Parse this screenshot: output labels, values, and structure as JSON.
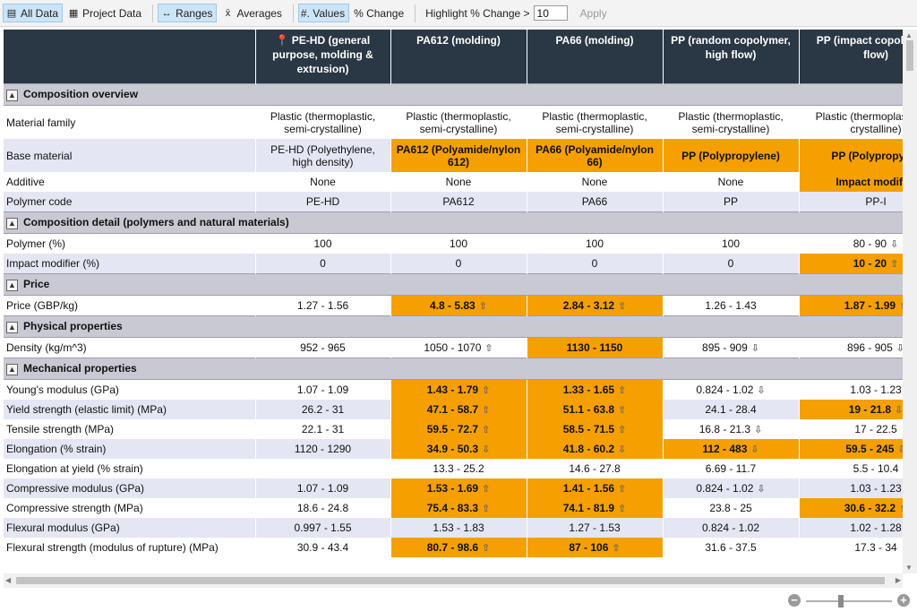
{
  "toolbar": {
    "all_data": "All Data",
    "project_data": "Project Data",
    "ranges": "Ranges",
    "averages": "Averages",
    "values": "#. Values",
    "change": "% Change",
    "highlight_label": "Highlight % Change >",
    "highlight_value": "10",
    "apply": "Apply",
    "icons": [
      "all-data-icon",
      "project-data-icon",
      "ranges-icon",
      "averages-icon"
    ]
  },
  "columns": [
    "PE-HD (general purpose, molding & extrusion)",
    "PA612 (molding)",
    "PA66 (molding)",
    "PP (random copolymer, high flow)",
    "PP (impact copoly high flow)"
  ],
  "colors": {
    "header_bg": "#2a3744",
    "highlight": "#f5a000",
    "section_bg": "#c9c9d3",
    "alt_row": "#e4e6f4"
  },
  "sections": {
    "composition_overview": "Composition overview",
    "composition_detail": "Composition detail (polymers and natural materials)",
    "price": "Price",
    "physical": "Physical properties",
    "mechanical": "Mechanical properties"
  },
  "rows": {
    "material_family": {
      "label": "Material family",
      "v": [
        "Plastic (thermoplastic, semi-crystalline)",
        "Plastic (thermoplastic, semi-crystalline)",
        "Plastic (thermoplastic, semi-crystalline)",
        "Plastic (thermoplastic, semi-crystalline)",
        "Plastic (thermoplas semi-crystalline)"
      ]
    },
    "base_material": {
      "label": "Base material",
      "v": [
        "PE-HD (Polyethylene, high density)",
        "PA612 (Polyamide/nylon 612)",
        "PA66 (Polyamide/nylon 66)",
        "PP (Polypropylene)",
        "PP (Polypropylen"
      ]
    },
    "additive": {
      "label": "Additive",
      "v": [
        "None",
        "None",
        "None",
        "None",
        "Impact modifier"
      ]
    },
    "polymer_code": {
      "label": "Polymer code",
      "v": [
        "PE-HD",
        "PA612",
        "PA66",
        "PP",
        "PP-I"
      ]
    },
    "polymer_pct": {
      "label": "Polymer (%)",
      "v": [
        "100",
        "100",
        "100",
        "100",
        "80 - 90"
      ]
    },
    "impact_mod": {
      "label": "Impact modifier (%)",
      "v": [
        "0",
        "0",
        "0",
        "0",
        "10 - 20"
      ]
    },
    "price_gbp": {
      "label": "Price (GBP/kg)",
      "v": [
        "1.27 - 1.56",
        "4.8 - 5.83",
        "2.84 - 3.12",
        "1.26 - 1.43",
        "1.87 - 1.99"
      ]
    },
    "density": {
      "label": "Density (kg/m^3)",
      "v": [
        "952 - 965",
        "1050 - 1070",
        "1130 - 1150",
        "895 - 909",
        "896 - 905"
      ]
    },
    "youngs": {
      "label": "Young's modulus (GPa)",
      "v": [
        "1.07 - 1.09",
        "1.43 - 1.79",
        "1.33 - 1.65",
        "0.824 - 1.02",
        "1.03 - 1.23"
      ]
    },
    "yield": {
      "label": "Yield strength (elastic limit) (MPa)",
      "v": [
        "26.2 - 31",
        "47.1 - 58.7",
        "51.1 - 63.8",
        "24.1 - 28.4",
        "19 - 21.8"
      ]
    },
    "tensile": {
      "label": "Tensile strength (MPa)",
      "v": [
        "22.1 - 31",
        "59.5 - 72.7",
        "58.5 - 71.5",
        "16.8 - 21.3",
        "17 - 22.5"
      ]
    },
    "elongation": {
      "label": "Elongation (% strain)",
      "v": [
        "1120 - 1290",
        "34.9 - 50.3",
        "41.8 - 60.2",
        "112 - 483",
        "59.5 - 245"
      ]
    },
    "elong_yield": {
      "label": "Elongation at yield (% strain)",
      "v": [
        "",
        "13.3 - 25.2",
        "14.6 - 27.8",
        "6.69 - 11.7",
        "5.5 - 10.4"
      ]
    },
    "comp_mod": {
      "label": "Compressive modulus (GPa)",
      "v": [
        "1.07 - 1.09",
        "1.53 - 1.69",
        "1.41 - 1.56",
        "0.824 - 1.02",
        "1.03 - 1.23"
      ]
    },
    "comp_str": {
      "label": "Compressive strength (MPa)",
      "v": [
        "18.6 - 24.8",
        "75.4 - 83.3",
        "74.1 - 81.9",
        "23.8 - 25",
        "30.6 - 32.2"
      ]
    },
    "flex_mod": {
      "label": "Flexural modulus (GPa)",
      "v": [
        "0.997 - 1.55",
        "1.53 - 1.83",
        "1.27 - 1.53",
        "0.824 - 1.02",
        "1.02 - 1.28"
      ]
    },
    "flex_str": {
      "label": "Flexural strength (modulus of rupture) (MPa)",
      "v": [
        "30.9 - 43.4",
        "80.7 - 98.6",
        "87 - 106",
        "31.6 - 37.5",
        "17.3 - 34"
      ]
    }
  },
  "zoom_level": 0.4
}
